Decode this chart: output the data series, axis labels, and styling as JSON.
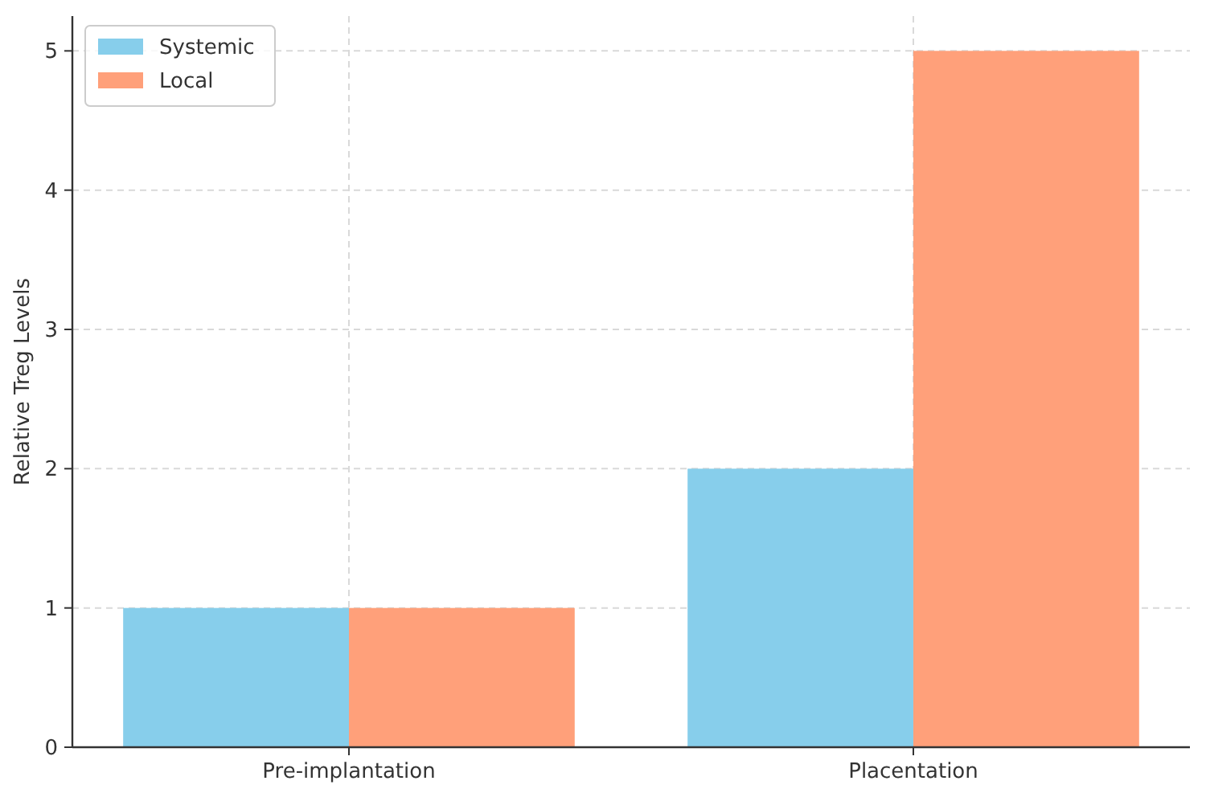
{
  "chart_data": {
    "type": "bar",
    "ylabel": "Relative Treg Levels",
    "categories": [
      "Pre-implantation",
      "Placentation"
    ],
    "series": [
      {
        "name": "Systemic",
        "color": "#87ceeb",
        "values": [
          1,
          2
        ]
      },
      {
        "name": "Local",
        "color": "#ffa07a",
        "values": [
          1,
          5
        ]
      }
    ],
    "ylim": [
      0,
      5.25
    ],
    "yticks": [
      0,
      1,
      2,
      3,
      4,
      5
    ],
    "grid": true,
    "legend": "top left"
  }
}
